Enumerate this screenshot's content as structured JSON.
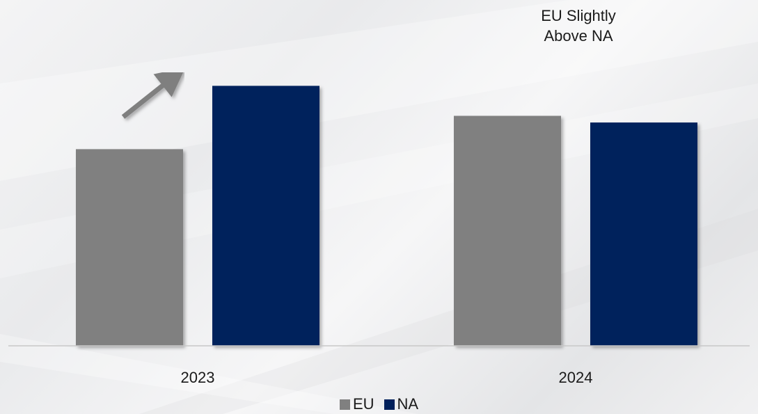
{
  "chart_data": {
    "type": "bar",
    "categories": [
      "2023",
      "2024"
    ],
    "series": [
      {
        "name": "EU",
        "color": "#808080",
        "values": [
          59,
          69
        ]
      },
      {
        "name": "NA",
        "color": "#00205b",
        "values": [
          78,
          67
        ]
      }
    ],
    "ylim": [
      0,
      100
    ],
    "grid": false,
    "legend_position": "bottom",
    "annotations": [
      {
        "text_lines": [
          "EU Slightly",
          "Above NA"
        ],
        "arrow": "right",
        "category": "2024"
      },
      {
        "text_lines": [],
        "arrow": "up-right",
        "category": "2023"
      }
    ]
  },
  "colors": {
    "eu": "#808080",
    "na": "#00205b",
    "arrow": "#7f7f7f",
    "baseline": "#c8c8c8"
  }
}
